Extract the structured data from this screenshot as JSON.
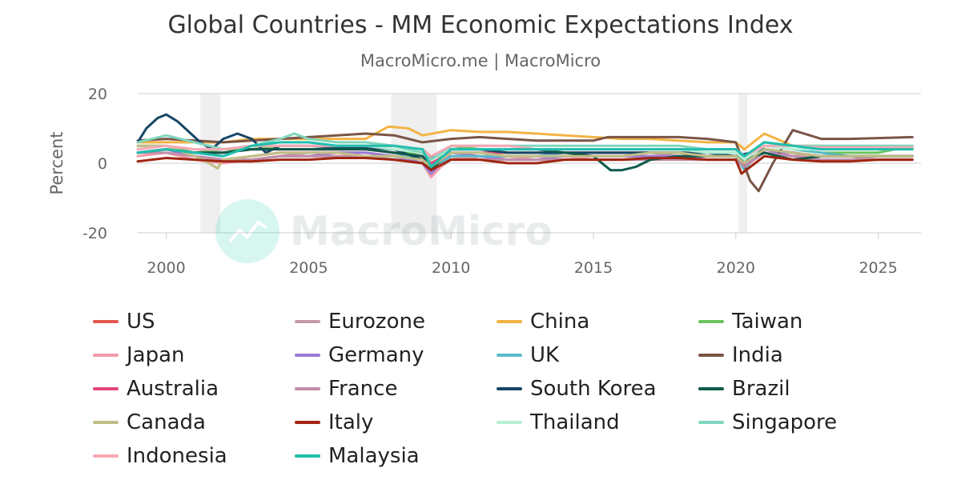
{
  "chart_data": {
    "type": "line",
    "title": "Global Countries - MM Economic Expectations Index",
    "subtitle": "MacroMicro.me | MacroMicro",
    "ylabel": "Percent",
    "xlim": [
      1999.0,
      2026.5
    ],
    "ylim": [
      -20,
      20
    ],
    "y_ticks": [
      20,
      0,
      -20
    ],
    "x_ticks": [
      2000,
      2005,
      2010,
      2015,
      2020,
      2025
    ],
    "grid": "horizontal",
    "legend_position": "bottom",
    "watermark": "MacroMicro",
    "recessions": [
      [
        2001.2,
        2001.9
      ],
      [
        2007.9,
        2009.5
      ],
      [
        2020.1,
        2020.4
      ]
    ],
    "series": [
      {
        "name": "US",
        "color": "#e05a4e",
        "x": [
          1999.0,
          2000,
          2001,
          2002,
          2003,
          2004,
          2005,
          2006,
          2007,
          2008,
          2009,
          2009.3,
          2010,
          2011,
          2012,
          2013,
          2014,
          2015,
          2016,
          2017,
          2018,
          2019,
          2020,
          2020.3,
          2021,
          2022,
          2023,
          2024,
          2025,
          2026.2
        ],
        "y": [
          3,
          4,
          2,
          1,
          2,
          3,
          3,
          3,
          3,
          2,
          1,
          -2,
          1,
          2,
          2,
          2,
          2,
          2,
          2,
          2,
          2,
          2,
          2,
          -1,
          4,
          3,
          2,
          2,
          2,
          2
        ]
      },
      {
        "name": "Eurozone",
        "color": "#c49aa8",
        "x": [
          1999.0,
          2000,
          2001,
          2002,
          2003,
          2004,
          2005,
          2006,
          2007,
          2008,
          2009,
          2009.3,
          2010,
          2011,
          2012,
          2013,
          2014,
          2015,
          2016,
          2017,
          2018,
          2019,
          2020,
          2020.3,
          2021,
          2022,
          2023,
          2024,
          2025,
          2026.2
        ],
        "y": [
          3,
          4,
          2,
          1,
          1,
          2,
          3,
          3,
          3,
          2,
          0,
          -3,
          1,
          2,
          1,
          1,
          2,
          2,
          2,
          3,
          2,
          2,
          2,
          -1,
          4,
          3,
          1,
          1,
          2,
          2
        ]
      },
      {
        "name": "China",
        "color": "#f2b445",
        "x": [
          1999.0,
          2000,
          2001,
          2002,
          2003,
          2004,
          2005,
          2006,
          2007,
          2007.8,
          2008.5,
          2009,
          2010,
          2011,
          2012,
          2013,
          2014,
          2015,
          2016,
          2017,
          2018,
          2019,
          2020,
          2020.3,
          2021,
          2022,
          2023,
          2024,
          2025,
          2026.2
        ],
        "y": [
          6,
          6,
          6,
          6,
          7,
          7,
          7,
          7,
          7,
          10.5,
          10,
          8,
          9.5,
          9,
          9,
          8.5,
          8,
          7.5,
          7,
          7,
          6.5,
          6,
          6,
          4,
          8.5,
          5,
          5,
          4.5,
          4.5,
          4.5
        ]
      },
      {
        "name": "Taiwan",
        "color": "#6bc45f",
        "x": [
          1999.0,
          2000,
          2001,
          2002,
          2003,
          2004,
          2005,
          2006,
          2007,
          2008,
          2009,
          2009.3,
          2010,
          2011,
          2012,
          2013,
          2014,
          2015,
          2016,
          2017,
          2018,
          2019,
          2020,
          2020.3,
          2021,
          2022,
          2023,
          2024,
          2025,
          2026.2
        ],
        "y": [
          5,
          5,
          3,
          4,
          4,
          5,
          5,
          5,
          5,
          4,
          2,
          -1,
          5,
          4,
          3,
          3,
          3,
          3,
          3,
          3,
          3,
          3,
          3,
          1,
          5,
          4,
          3,
          3,
          3,
          5
        ]
      },
      {
        "name": "Japan",
        "color": "#f49aaa",
        "x": [
          1999.0,
          2000,
          2001,
          2002,
          2003,
          2004,
          2005,
          2006,
          2007,
          2008,
          2009,
          2009.3,
          2010,
          2011,
          2012,
          2013,
          2014,
          2015,
          2016,
          2017,
          2018,
          2019,
          2020,
          2020.3,
          2021,
          2022,
          2023,
          2024,
          2025,
          2026.2
        ],
        "y": [
          2,
          3,
          1,
          0,
          1,
          2,
          2,
          2,
          2,
          1,
          0,
          -4,
          2,
          1,
          1,
          2,
          2,
          1,
          1,
          1,
          1,
          1,
          1,
          -1,
          3,
          2,
          2,
          2,
          2,
          2
        ]
      },
      {
        "name": "Germany",
        "color": "#9b7ad6",
        "x": [
          1999.0,
          2000,
          2001,
          2002,
          2003,
          2004,
          2005,
          2006,
          2007,
          2008,
          2009,
          2009.3,
          2010,
          2011,
          2012,
          2013,
          2014,
          2015,
          2016,
          2017,
          2018,
          2019,
          2020,
          2020.3,
          2021,
          2022,
          2023,
          2024,
          2025,
          2026.2
        ],
        "y": [
          3,
          4,
          2,
          1,
          1,
          2,
          2,
          3,
          3,
          2,
          0,
          -3,
          3,
          2,
          1,
          1,
          2,
          2,
          2,
          2,
          2,
          1,
          1,
          -1,
          4,
          2,
          1,
          1,
          1,
          1
        ]
      },
      {
        "name": "UK",
        "color": "#5bbcc9",
        "x": [
          1999.0,
          2000,
          2001,
          2002,
          2003,
          2004,
          2005,
          2006,
          2007,
          2008,
          2009,
          2009.3,
          2010,
          2011,
          2012,
          2013,
          2014,
          2015,
          2016,
          2017,
          2018,
          2019,
          2020,
          2020.3,
          2021,
          2022,
          2023,
          2024,
          2025,
          2026.2
        ],
        "y": [
          3,
          4,
          3,
          3,
          4,
          4,
          4,
          4,
          4,
          3,
          1,
          -2,
          2,
          2,
          2,
          2,
          3,
          3,
          3,
          3,
          3,
          2,
          2,
          -2,
          5,
          4,
          3,
          2,
          2,
          2
        ]
      },
      {
        "name": "India",
        "color": "#7a5446",
        "x": [
          1999.0,
          2000,
          2001,
          2002,
          2003,
          2004,
          2005,
          2006,
          2007,
          2008,
          2009,
          2010,
          2011,
          2012,
          2013,
          2014,
          2015,
          2015.5,
          2016,
          2017,
          2018,
          2019,
          2020,
          2020.5,
          2020.8,
          2021.3,
          2022,
          2023,
          2024,
          2026.2
        ],
        "y": [
          6.5,
          7,
          6.5,
          6,
          6.5,
          7,
          7.5,
          8,
          8.5,
          8,
          6,
          7,
          7.5,
          7,
          6.5,
          6.5,
          6.5,
          7.5,
          7.5,
          7.5,
          7.5,
          7,
          6,
          -5,
          -8,
          0,
          9.5,
          7,
          7,
          7.5
        ]
      },
      {
        "name": "Australia",
        "color": "#e2477b",
        "x": [
          1999.0,
          2000,
          2001,
          2002,
          2003,
          2004,
          2005,
          2006,
          2007,
          2008,
          2009,
          2009.3,
          2010,
          2011,
          2012,
          2013,
          2014,
          2015,
          2016,
          2017,
          2018,
          2019,
          2020,
          2020.3,
          2021,
          2022,
          2023,
          2024,
          2025,
          2026.2
        ],
        "y": [
          3,
          4,
          3,
          3,
          4,
          4,
          4,
          4,
          4,
          3,
          2,
          0,
          3,
          3,
          3,
          3,
          3,
          3,
          3,
          3,
          3,
          2,
          2,
          0,
          4,
          3,
          2,
          2,
          2,
          2
        ]
      },
      {
        "name": "France",
        "color": "#c08ea8",
        "x": [
          1999.0,
          2000,
          2001,
          2002,
          2003,
          2004,
          2005,
          2006,
          2007,
          2008,
          2009,
          2009.3,
          2010,
          2011,
          2012,
          2013,
          2014,
          2015,
          2016,
          2017,
          2018,
          2019,
          2020,
          2020.3,
          2021,
          2022,
          2023,
          2024,
          2025,
          2026.2
        ],
        "y": [
          3,
          3,
          2,
          1,
          1,
          2,
          2,
          2,
          2,
          1,
          0,
          -2,
          1,
          1,
          1,
          1,
          1,
          1,
          1,
          1,
          1,
          1,
          1,
          -1,
          3,
          2,
          1,
          1,
          1,
          1
        ]
      },
      {
        "name": "South Korea",
        "color": "#174766",
        "x": [
          1999.0,
          1999.3,
          1999.7,
          2000,
          2000.4,
          2000.8,
          2001.2,
          2001.6,
          2002,
          2002.5,
          2003,
          2003.5,
          2004,
          2005,
          2006,
          2007,
          2008,
          2009,
          2010,
          2011,
          2012,
          2013,
          2014,
          2015,
          2016,
          2017,
          2018,
          2019,
          2020,
          2021,
          2022,
          2023,
          2024,
          2025,
          2026.2
        ],
        "y": [
          6,
          10,
          13,
          14,
          12,
          9,
          6,
          4,
          7,
          8.5,
          7,
          3,
          5,
          5,
          4.5,
          4.5,
          4,
          1,
          4,
          4,
          3,
          3,
          3,
          3,
          3,
          3,
          3,
          3,
          2,
          4,
          3,
          2,
          2,
          2,
          2
        ]
      },
      {
        "name": "Brazil",
        "color": "#0e5a4a",
        "x": [
          1999.0,
          2000,
          2001,
          2002,
          2003,
          2004,
          2005,
          2006,
          2007,
          2008,
          2009,
          2009.3,
          2010,
          2011,
          2012,
          2013,
          2014,
          2015,
          2015.6,
          2016,
          2016.5,
          2017,
          2018,
          2019,
          2020,
          2020.3,
          2021,
          2022,
          2023,
          2024,
          2026.2
        ],
        "y": [
          3,
          4,
          3,
          3,
          4,
          4,
          4,
          4,
          4,
          3,
          2,
          -2,
          4,
          4,
          4,
          4,
          3,
          2,
          -2,
          -2,
          -1,
          1,
          2,
          2,
          2,
          1,
          3,
          1,
          2,
          2,
          2
        ]
      },
      {
        "name": "Canada",
        "color": "#c2bd86",
        "x": [
          1999.0,
          2000,
          2001,
          2001.5,
          2001.8,
          2002,
          2003,
          2004,
          2005,
          2006,
          2007,
          2008,
          2009,
          2009.3,
          2010,
          2011,
          2012,
          2013,
          2014,
          2015,
          2016,
          2017,
          2018,
          2019,
          2020,
          2020.3,
          2021,
          2022,
          2023,
          2024,
          2025,
          2026.2
        ],
        "y": [
          5,
          5,
          2,
          0,
          -1.5,
          1,
          2,
          3,
          3,
          3,
          2,
          2,
          1,
          -1,
          3,
          3,
          2,
          2,
          2,
          2,
          2,
          3,
          3,
          2,
          2,
          0,
          4,
          3,
          2,
          2,
          2,
          2
        ]
      },
      {
        "name": "Italy",
        "color": "#a02511",
        "x": [
          1999.0,
          2000,
          2001,
          2002,
          2003,
          2004,
          2005,
          2006,
          2007,
          2008,
          2009,
          2009.3,
          2010,
          2011,
          2012,
          2013,
          2014,
          2015,
          2016,
          2017,
          2018,
          2019,
          2020,
          2020.2,
          2021,
          2022,
          2023,
          2024,
          2025,
          2026.2
        ],
        "y": [
          0.5,
          1.5,
          1,
          0.5,
          0.5,
          1,
          1,
          1.5,
          1.5,
          1,
          0,
          -2,
          1,
          1,
          0,
          0,
          1,
          1,
          1,
          1.5,
          1.5,
          1,
          1,
          -3,
          2,
          1,
          0.5,
          0.5,
          1,
          1
        ]
      },
      {
        "name": "Thailand",
        "color": "#b5f0d5",
        "x": [
          1999.0,
          2000,
          2001,
          2002,
          2003,
          2004,
          2005,
          2006,
          2007,
          2008,
          2009,
          2009.3,
          2010,
          2011,
          2012,
          2013,
          2014,
          2015,
          2016,
          2017,
          2018,
          2019,
          2020,
          2020.3,
          2021,
          2022,
          2023,
          2024,
          2025,
          2026.2
        ],
        "y": [
          4,
          5,
          4,
          4,
          5,
          5,
          5,
          5,
          5,
          4,
          3,
          1,
          4,
          4,
          4,
          4,
          4,
          4,
          4,
          4,
          4,
          3,
          3,
          1,
          5,
          4,
          4,
          4,
          4,
          4
        ]
      },
      {
        "name": "Singapore",
        "color": "#80d6bf",
        "x": [
          1999.0,
          2000,
          2001,
          2002,
          2003,
          2004,
          2004.5,
          2005,
          2006,
          2007,
          2008,
          2009,
          2009.3,
          2010,
          2011,
          2012,
          2013,
          2014,
          2015,
          2016,
          2017,
          2018,
          2019,
          2020,
          2020.3,
          2021,
          2022,
          2023,
          2024,
          2025,
          2026.2
        ],
        "y": [
          6,
          8,
          6,
          4,
          5,
          7,
          8.5,
          7,
          6,
          6,
          5,
          3,
          1,
          5,
          5,
          5,
          5,
          5,
          5,
          5,
          5,
          5,
          4,
          4,
          2,
          6,
          5,
          5,
          5,
          5,
          5
        ]
      },
      {
        "name": "Indonesia",
        "color": "#f7a8b5",
        "x": [
          1999.0,
          2000,
          2001,
          2002,
          2003,
          2004,
          2005,
          2006,
          2007,
          2008,
          2009,
          2009.3,
          2010,
          2011,
          2012,
          2013,
          2014,
          2015,
          2016,
          2017,
          2018,
          2019,
          2020,
          2020.3,
          2021,
          2022,
          2023,
          2024,
          2025,
          2026.2
        ],
        "y": [
          4,
          5,
          4,
          4,
          5,
          5,
          5,
          5,
          5,
          5,
          4,
          2,
          5,
          5,
          5,
          4,
          4,
          4,
          4,
          4,
          4,
          4,
          4,
          2,
          5,
          5,
          4.5,
          4.5,
          4.5,
          4.5
        ]
      },
      {
        "name": "Malaysia",
        "color": "#1fbfae",
        "x": [
          1999.0,
          2000,
          2001,
          2002,
          2003,
          2004,
          2005,
          2006,
          2007,
          2008,
          2009,
          2009.3,
          2010,
          2011,
          2012,
          2013,
          2014,
          2015,
          2016,
          2017,
          2018,
          2019,
          2020,
          2020.3,
          2021,
          2022,
          2023,
          2024,
          2025,
          2026.2
        ],
        "y": [
          3,
          4,
          3,
          2,
          5,
          6,
          6,
          5,
          5,
          5,
          4,
          -1,
          4,
          4,
          4,
          4,
          4,
          4,
          4,
          4,
          4,
          4,
          4,
          2,
          6,
          5,
          4,
          4,
          4,
          4
        ]
      }
    ]
  }
}
